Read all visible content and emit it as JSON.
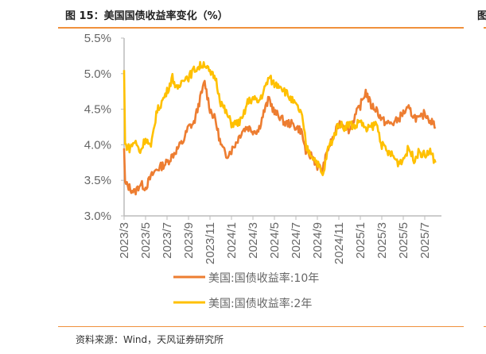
{
  "title": "图 15：美国国债收益率变化（%）",
  "next_panel_title_fragment": "图",
  "source": "资料来源：Wind，天风证券研究所",
  "chart_data": {
    "type": "line",
    "title": "美国国债收益率变化（%）",
    "xlabel": "",
    "ylabel": "",
    "ylim": [
      3.0,
      5.5
    ],
    "yticks": [
      "3.0%",
      "3.5%",
      "4.0%",
      "4.5%",
      "5.0%",
      "5.5%"
    ],
    "ytick_values": [
      3.0,
      3.5,
      4.0,
      4.5,
      5.0,
      5.5
    ],
    "xticks": [
      "2023/3",
      "2023/5",
      "2023/7",
      "2023/9",
      "2023/11",
      "2024/1",
      "2024/3",
      "2024/5",
      "2024/7",
      "2024/9",
      "2024/11",
      "2025/1",
      "2025/3",
      "2025/5",
      "2025/7"
    ],
    "xtick_months_since_2023_3": [
      0,
      2,
      4,
      6,
      8,
      10,
      12,
      14,
      16,
      18,
      20,
      22,
      24,
      26,
      28
    ],
    "x_months_since_2023_3": [
      0,
      0.1,
      0.5,
      1,
      1.5,
      2,
      2.5,
      3,
      3.5,
      4,
      4.5,
      5,
      5.5,
      6,
      6.5,
      7,
      7.5,
      8,
      8.5,
      9,
      9.5,
      10,
      10.5,
      11,
      11.5,
      12,
      12.5,
      13,
      13.5,
      14,
      14.5,
      15,
      15.5,
      16,
      16.5,
      17,
      17.5,
      18,
      18.5,
      19,
      19.5,
      20,
      20.5,
      21,
      21.5,
      22,
      22.5,
      23,
      23.5,
      24,
      24.5,
      25,
      25.5,
      26,
      26.5,
      27,
      27.5,
      28,
      28.5,
      29
    ],
    "legend_position": "bottom",
    "grid": false,
    "series": [
      {
        "name": "美国:国债收益率:10年",
        "color": "#ed7d31",
        "values": [
          3.95,
          3.45,
          3.4,
          3.33,
          3.45,
          3.4,
          3.55,
          3.65,
          3.7,
          3.75,
          3.85,
          3.95,
          4.05,
          4.25,
          4.3,
          4.6,
          4.88,
          4.5,
          4.35,
          4.0,
          3.85,
          3.92,
          4.05,
          4.2,
          4.25,
          4.2,
          4.2,
          4.45,
          4.65,
          4.45,
          4.4,
          4.3,
          4.3,
          4.25,
          4.2,
          3.85,
          3.85,
          3.7,
          3.65,
          3.95,
          4.1,
          4.3,
          4.3,
          4.2,
          4.4,
          4.55,
          4.75,
          4.55,
          4.5,
          4.35,
          4.3,
          4.3,
          4.35,
          4.45,
          4.5,
          4.4,
          4.35,
          4.45,
          4.35,
          4.25
        ]
      },
      {
        "name": "美国:国债收益率:2年",
        "color": "#ffc000",
        "values": [
          5.05,
          4.0,
          3.95,
          4.05,
          3.9,
          4.1,
          3.95,
          4.45,
          4.6,
          4.75,
          4.95,
          4.75,
          4.95,
          4.95,
          5.05,
          5.1,
          5.15,
          5.0,
          4.95,
          4.6,
          4.45,
          4.3,
          4.3,
          4.35,
          4.6,
          4.65,
          4.6,
          4.75,
          4.95,
          4.85,
          4.85,
          4.75,
          4.65,
          4.55,
          4.45,
          3.95,
          3.85,
          3.75,
          3.55,
          3.95,
          4.1,
          4.3,
          4.25,
          4.3,
          4.25,
          4.35,
          4.2,
          4.25,
          4.3,
          4.0,
          3.9,
          3.85,
          3.75,
          3.8,
          3.95,
          3.8,
          3.9,
          3.85,
          3.9,
          3.75
        ]
      }
    ]
  }
}
